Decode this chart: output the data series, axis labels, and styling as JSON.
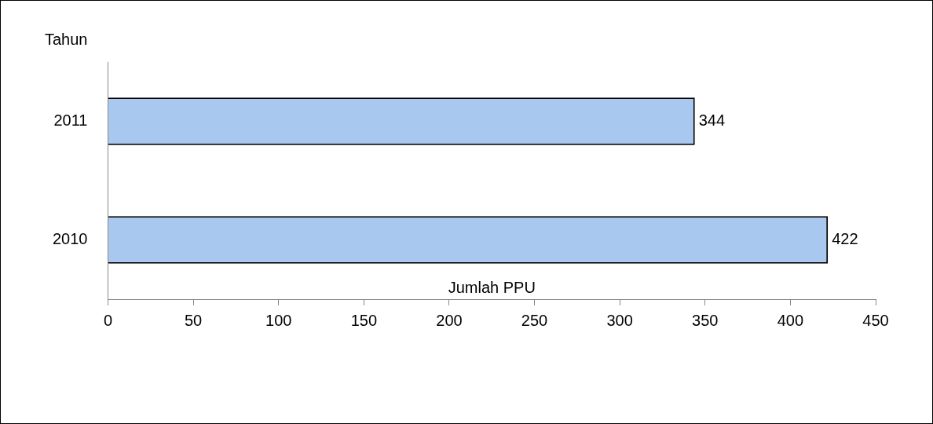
{
  "chart_data": {
    "type": "bar",
    "orientation": "horizontal",
    "categories": [
      "2011",
      "2010"
    ],
    "values": [
      344,
      422
    ],
    "color": "#a9c8f0",
    "xlim": [
      0,
      450
    ],
    "xticks": [
      0,
      50,
      100,
      150,
      200,
      250,
      300,
      350,
      400,
      450
    ],
    "xlabel": "Jumlah PPU",
    "ylabel": "Tahun",
    "data_labels": true,
    "grid": false,
    "legend": false
  }
}
